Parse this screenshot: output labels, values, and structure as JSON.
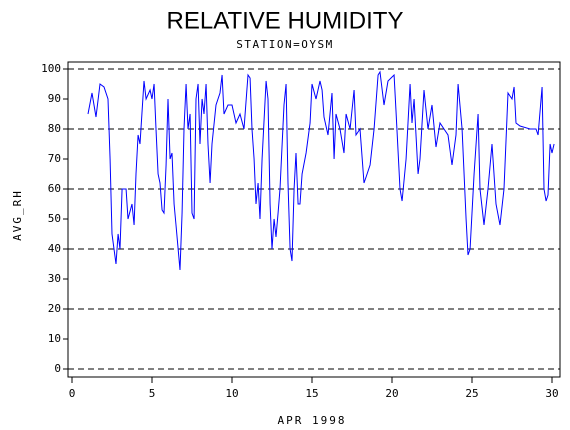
{
  "chart_data": {
    "type": "line",
    "title": "RELATIVE HUMIDITY",
    "subtitle": "STATION=OYSM",
    "xlabel": "APR 1998",
    "ylabel": "AVG_RH",
    "xlim": [
      -0.25,
      30.5
    ],
    "ylim": [
      -2.67,
      102.33
    ],
    "xticks": [
      0,
      5,
      10,
      15,
      20,
      25,
      30
    ],
    "yticks": [
      0,
      10,
      20,
      30,
      40,
      50,
      60,
      70,
      80,
      90,
      100
    ],
    "grid": true,
    "ygrid": [
      0,
      20,
      40,
      60,
      80,
      100
    ],
    "x": [
      1.0,
      1.25,
      1.5,
      1.75,
      2.0,
      2.25,
      2.38,
      2.5,
      2.75,
      2.88,
      3.0,
      3.13,
      3.38,
      3.5,
      3.75,
      3.88,
      4.0,
      4.13,
      4.25,
      4.5,
      4.63,
      4.88,
      5.0,
      5.13,
      5.25,
      5.38,
      5.5,
      5.63,
      5.75,
      5.88,
      6.0,
      6.13,
      6.25,
      6.38,
      6.5,
      6.75,
      6.88,
      7.0,
      7.13,
      7.25,
      7.38,
      7.5,
      7.63,
      7.75,
      7.88,
      8.0,
      8.13,
      8.25,
      8.38,
      8.5,
      8.63,
      8.75,
      9.0,
      9.25,
      9.38,
      9.5,
      9.75,
      10.0,
      10.25,
      10.5,
      10.75,
      11.0,
      11.13,
      11.25,
      11.38,
      11.5,
      11.63,
      11.75,
      11.88,
      12.13,
      12.25,
      12.38,
      12.5,
      12.63,
      12.75,
      12.88,
      13.0,
      13.25,
      13.38,
      13.5,
      13.63,
      13.75,
      13.88,
      14.0,
      14.13,
      14.25,
      14.38,
      14.63,
      14.88,
      15.0,
      15.25,
      15.5,
      15.63,
      15.75,
      16.0,
      16.25,
      16.38,
      16.5,
      16.75,
      17.0,
      17.13,
      17.38,
      17.63,
      17.75,
      18.0,
      18.25,
      18.38,
      18.63,
      18.88,
      19.13,
      19.25,
      19.5,
      19.75,
      20.13,
      20.25,
      20.5,
      20.63,
      20.88,
      21.13,
      21.25,
      21.38,
      21.63,
      21.75,
      22.0,
      22.25,
      22.5,
      22.75,
      23.0,
      23.25,
      23.5,
      23.75,
      24.0,
      24.13,
      24.38,
      24.63,
      24.75,
      24.88,
      25.13,
      25.38,
      25.5,
      25.75,
      26.0,
      26.25,
      26.5,
      26.75,
      27.0,
      27.25,
      27.5,
      27.63,
      27.75,
      28.0,
      28.63,
      29.0,
      29.13,
      29.38,
      29.5,
      29.63,
      29.75,
      29.88,
      30.0,
      30.13
    ],
    "series": [
      {
        "color": "#0000ff",
        "values": [
          85,
          92,
          84,
          95,
          94,
          90,
          70,
          45,
          35,
          45,
          40,
          60,
          60,
          50,
          55,
          48,
          65,
          78,
          75,
          96,
          90,
          93,
          90,
          95,
          80,
          65,
          62,
          53,
          52,
          68,
          90,
          70,
          72,
          55,
          48,
          33,
          52,
          80,
          95,
          80,
          85,
          52,
          50,
          90,
          95,
          75,
          90,
          85,
          95,
          75,
          62,
          75,
          88,
          92,
          98,
          85,
          88,
          88,
          82,
          85,
          80,
          98,
          97,
          80,
          70,
          55,
          62,
          50,
          70,
          96,
          90,
          55,
          40,
          50,
          44,
          52,
          60,
          88,
          95,
          62,
          40,
          36,
          60,
          72,
          55,
          55,
          65,
          72,
          82,
          95,
          90,
          96,
          93,
          84,
          78,
          92,
          70,
          85,
          80,
          72,
          85,
          80,
          93,
          78,
          80,
          62,
          64,
          68,
          80,
          98,
          99,
          88,
          96,
          98,
          86,
          60,
          56,
          70,
          95,
          82,
          90,
          65,
          70,
          93,
          80,
          88,
          74,
          82,
          80,
          78,
          68,
          78,
          95,
          80,
          50,
          38,
          40,
          65,
          85,
          60,
          48,
          60,
          75,
          55,
          48,
          60,
          92,
          90,
          94,
          82,
          81,
          80,
          80,
          78,
          94,
          60,
          56,
          58,
          75,
          72,
          75
        ]
      }
    ]
  }
}
